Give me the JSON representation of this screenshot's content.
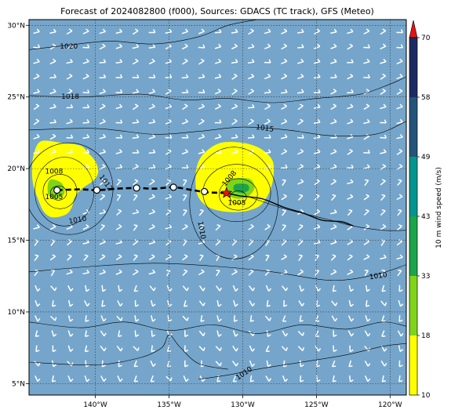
{
  "title": "Forecast of 2024082800 (f000), Sources: GDACS (TC track), GFS (Meteo)",
  "map": {
    "lon_range": [
      -144.5,
      -118.9
    ],
    "lat_range": [
      4.2,
      30.4
    ],
    "lon_ticks": [
      {
        "value": -140,
        "label": "140°W"
      },
      {
        "value": -135,
        "label": "135°W"
      },
      {
        "value": -130,
        "label": "130°W"
      },
      {
        "value": -125,
        "label": "125°W"
      },
      {
        "value": -120,
        "label": "120°W"
      }
    ],
    "lat_ticks": [
      {
        "value": 30,
        "label": "30°N"
      },
      {
        "value": 25,
        "label": "25°N"
      },
      {
        "value": 20,
        "label": "20°N"
      },
      {
        "value": 15,
        "label": "15°N"
      },
      {
        "value": 10,
        "label": "10°N"
      },
      {
        "value": 5,
        "label": "5°N"
      }
    ],
    "ocean_color": "#75a5ca",
    "isobar_labels": [
      {
        "text": "1020",
        "lon": -141.8,
        "lat": 28.5,
        "rot": 0
      },
      {
        "text": "1018",
        "lon": -141.7,
        "lat": 25.0,
        "rot": 0
      },
      {
        "text": "1015",
        "lon": -128.5,
        "lat": 22.8,
        "rot": 8
      },
      {
        "text": "1008",
        "lon": -142.8,
        "lat": 19.8,
        "rot": 0
      },
      {
        "text": "1005",
        "lon": -142.8,
        "lat": 18.0,
        "rot": 0
      },
      {
        "text": "1010",
        "lon": -141.2,
        "lat": 16.4,
        "rot": -10
      },
      {
        "text": "1012",
        "lon": -139.3,
        "lat": 19.0,
        "rot": 55
      },
      {
        "text": "1008",
        "lon": -130.9,
        "lat": 19.3,
        "rot": -50
      },
      {
        "text": "1005",
        "lon": -130.4,
        "lat": 17.6,
        "rot": 0
      },
      {
        "text": "1010",
        "lon": -132.8,
        "lat": 15.7,
        "rot": 80
      },
      {
        "text": "1010",
        "lon": -120.8,
        "lat": 12.5,
        "rot": -8
      },
      {
        "text": "1010",
        "lon": -129.9,
        "lat": 5.7,
        "rot": -35
      }
    ],
    "isobars": [
      [
        [
          -144.5,
          28.3
        ],
        [
          -142,
          28.6
        ],
        [
          -139,
          28.9
        ],
        [
          -136,
          28.7
        ],
        [
          -133,
          29.2
        ],
        [
          -131,
          30.0
        ],
        [
          -129,
          30.4
        ]
      ],
      [
        [
          -144.5,
          25.1
        ],
        [
          -141,
          25.0
        ],
        [
          -137,
          25.2
        ],
        [
          -134,
          24.8
        ],
        [
          -131,
          24.9
        ],
        [
          -128,
          24.6
        ],
        [
          -125,
          24.9
        ],
        [
          -122,
          25.2
        ],
        [
          -120,
          25.9
        ],
        [
          -118.9,
          26.4
        ]
      ],
      [
        [
          -144.5,
          22.7
        ],
        [
          -140,
          22.8
        ],
        [
          -136,
          22.4
        ],
        [
          -133,
          22.6
        ],
        [
          -130,
          22.9
        ],
        [
          -127,
          22.7
        ],
        [
          -124,
          22.3
        ],
        [
          -121,
          22.4
        ],
        [
          -118.9,
          23.3
        ]
      ],
      [
        [
          -129.5,
          18.0
        ],
        [
          -127.5,
          17.3
        ],
        [
          -126,
          16.9
        ],
        [
          -124,
          16.4
        ],
        [
          -122.5,
          16.0
        ],
        [
          -120.5,
          15.7
        ],
        [
          -118.9,
          15.7
        ]
      ],
      [
        [
          -144.5,
          12.8
        ],
        [
          -140,
          13.2
        ],
        [
          -136,
          13.4
        ],
        [
          -132,
          13.2
        ],
        [
          -128,
          12.8
        ],
        [
          -124,
          12.2
        ],
        [
          -121,
          12.6
        ],
        [
          -118.9,
          13.3
        ]
      ],
      [
        [
          -144.5,
          9.3
        ],
        [
          -141,
          8.9
        ],
        [
          -138,
          9.3
        ],
        [
          -135,
          8.7
        ],
        [
          -132,
          9.1
        ],
        [
          -129,
          8.5
        ],
        [
          -126,
          9.1
        ],
        [
          -123,
          8.8
        ],
        [
          -120.5,
          9.3
        ],
        [
          -118.9,
          9.0
        ]
      ],
      [
        [
          -133,
          5.3
        ],
        [
          -131,
          5.6
        ],
        [
          -129,
          6.0
        ],
        [
          -126,
          6.5
        ],
        [
          -123,
          7.0
        ],
        [
          -120.5,
          7.6
        ],
        [
          -118.9,
          7.8
        ]
      ],
      [
        [
          -144.5,
          6.5
        ],
        [
          -140,
          6.3
        ],
        [
          -137,
          6.8
        ],
        [
          -135.5,
          7.5
        ],
        [
          -135,
          8.4
        ],
        [
          -134.3,
          7.6
        ],
        [
          -133,
          6.4
        ],
        [
          -131,
          6.0
        ]
      ]
    ],
    "closed_isobars": [
      {
        "lon": -142.5,
        "lat": 18.3,
        "rx": 0.55,
        "ry": 0.5
      },
      {
        "lon": -142.4,
        "lat": 18.4,
        "rx": 1.15,
        "ry": 1.2
      },
      {
        "lon": -142.1,
        "lat": 18.4,
        "rx": 2.0,
        "ry": 2.4
      },
      {
        "lon": -141.8,
        "lat": 18.6,
        "rx": 3.0,
        "ry": 3.2
      },
      {
        "lon": -130.3,
        "lat": 18.0,
        "rx": 0.55,
        "ry": 0.45
      },
      {
        "lon": -130.3,
        "lat": 18.2,
        "rx": 1.3,
        "ry": 1.1
      },
      {
        "lon": -130.4,
        "lat": 18.3,
        "rx": 2.3,
        "ry": 2.0
      },
      {
        "lon": -130.6,
        "lat": 17.6,
        "rx": 3.0,
        "ry": 3.9
      }
    ],
    "wind_areas": [
      {
        "color": "#ffff00",
        "points": [
          [
            -143.7,
            21.9
          ],
          [
            -142.3,
            21.8
          ],
          [
            -141.0,
            21.6
          ],
          [
            -140.4,
            21.0
          ],
          [
            -140.0,
            20.5
          ],
          [
            -139.8,
            19.8
          ],
          [
            -140.1,
            19.2
          ],
          [
            -140.9,
            18.6
          ],
          [
            -141.4,
            18.0
          ],
          [
            -141.6,
            17.3
          ],
          [
            -142.0,
            16.8
          ],
          [
            -142.9,
            16.6
          ],
          [
            -143.5,
            17.0
          ],
          [
            -143.9,
            17.9
          ],
          [
            -144.2,
            18.8
          ],
          [
            -144.3,
            19.8
          ],
          [
            -144.2,
            20.9
          ]
        ]
      },
      {
        "color": "#ffff00",
        "points": [
          [
            -131.5,
            21.8
          ],
          [
            -130.0,
            21.8
          ],
          [
            -128.8,
            21.4
          ],
          [
            -128.0,
            20.6
          ],
          [
            -127.9,
            19.6
          ],
          [
            -128.1,
            18.6
          ],
          [
            -128.5,
            17.8
          ],
          [
            -129.0,
            17.3
          ],
          [
            -130.0,
            17.0
          ],
          [
            -131.2,
            17.0
          ],
          [
            -132.3,
            17.3
          ],
          [
            -133.0,
            18.0
          ],
          [
            -133.2,
            19.0
          ],
          [
            -133.1,
            20.2
          ],
          [
            -132.6,
            21.1
          ]
        ]
      },
      {
        "color": "#7fd41a",
        "points": [
          [
            -130.9,
            19.2
          ],
          [
            -129.6,
            19.3
          ],
          [
            -129.2,
            18.7
          ],
          [
            -129.6,
            18.1
          ],
          [
            -130.4,
            17.9
          ],
          [
            -131.1,
            18.3
          ]
        ]
      },
      {
        "color": "#1ba54a",
        "points": [
          [
            -130.5,
            18.9
          ],
          [
            -129.7,
            18.9
          ],
          [
            -129.6,
            18.5
          ],
          [
            -130.1,
            18.3
          ],
          [
            -130.6,
            18.5
          ]
        ]
      },
      {
        "color": "#7fd41a",
        "points": [
          [
            -143.1,
            19.2
          ],
          [
            -142.3,
            19.0
          ],
          [
            -142.1,
            18.3
          ],
          [
            -142.6,
            17.9
          ],
          [
            -143.2,
            18.2
          ]
        ]
      }
    ],
    "track_observed": [
      [
        -131.1,
        18.3
      ],
      [
        -130.2,
        18.1
      ],
      [
        -128.7,
        17.9
      ],
      [
        -127.2,
        17.3
      ],
      [
        -125.9,
        16.9
      ],
      [
        -124.6,
        16.4
      ],
      [
        -123.3,
        16.3
      ],
      [
        -122.5,
        16.0
      ]
    ],
    "track_forecast": [
      [
        -142.6,
        18.5
      ],
      [
        -141,
        18.55
      ],
      [
        -139.9,
        18.5
      ],
      [
        -138.5,
        18.6
      ],
      [
        -137.2,
        18.65
      ],
      [
        -136,
        18.6
      ],
      [
        -134.7,
        18.7
      ],
      [
        -133.4,
        18.5
      ],
      [
        -132.4,
        18.35
      ],
      [
        -131.1,
        18.3
      ]
    ],
    "track_points": [
      {
        "lon": -142.6,
        "lat": 18.5
      },
      {
        "lon": -139.9,
        "lat": 18.5
      },
      {
        "lon": -137.2,
        "lat": 18.65
      },
      {
        "lon": -134.7,
        "lat": 18.7
      },
      {
        "lon": -132.6,
        "lat": 18.4
      }
    ],
    "storm_position": {
      "lon": -131.1,
      "lat": 18.3,
      "color": "#e41414"
    }
  },
  "colorbar": {
    "label": "10 m wind speed (m/s)",
    "ticks": [
      "10",
      "18",
      "33",
      "43",
      "49",
      "58",
      "70"
    ],
    "segments": [
      "#ffff00",
      "#7fd41a",
      "#1ba54a",
      "#00968f",
      "#23557b",
      "#1d2b63"
    ],
    "extend_color": "#e41414"
  }
}
